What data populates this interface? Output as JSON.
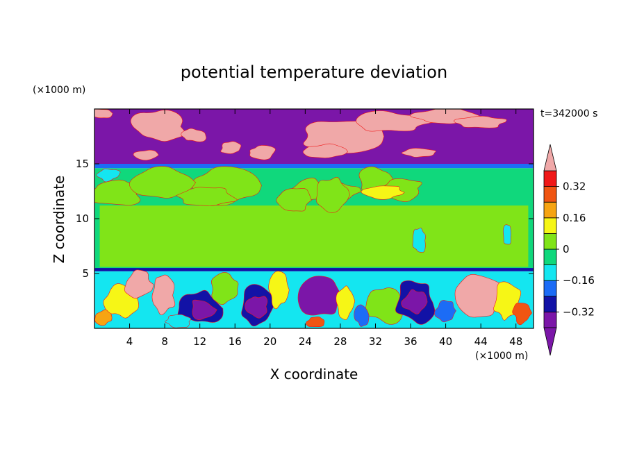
{
  "chart_data": {
    "type": "heatmap",
    "title": "potential temperature deviation",
    "xlabel": "X coordinate",
    "ylabel": "Z coordinate",
    "x_unit": "(×1000 m)",
    "y_unit": "(×1000 m)",
    "time_label": "t=342000 s",
    "xlim": [
      0,
      50
    ],
    "ylim": [
      0,
      20
    ],
    "x_ticks": [
      4,
      8,
      12,
      16,
      20,
      24,
      28,
      32,
      36,
      40,
      44,
      48
    ],
    "y_ticks": [
      5,
      10,
      15
    ],
    "colorbar": {
      "levels": [
        -0.4,
        -0.32,
        -0.24,
        -0.16,
        -0.08,
        0,
        0.08,
        0.16,
        0.24,
        0.32,
        0.4
      ],
      "tick_values": [
        0.32,
        0.16,
        0,
        -0.16,
        -0.32
      ],
      "tick_labels": [
        "0.32",
        "0.16",
        "0",
        "−0.16",
        "−0.32"
      ],
      "colors": [
        "#7b16a8",
        "#1212a6",
        "#1c6cf6",
        "#14e6f0",
        "#10d87c",
        "#80e418",
        "#f6f616",
        "#f6a412",
        "#f05512",
        "#f01818",
        "#f0a8a8"
      ],
      "extend": "both"
    },
    "regions": [
      {
        "name": "upper layer",
        "z": [
          15,
          20
        ],
        "dominant_value": "below -0.4",
        "features": "positive anomaly patches (> 0.4)"
      },
      {
        "name": "tropopause band",
        "z": [
          14.5,
          15
        ],
        "dominant_value": "-0.32 to -0.08"
      },
      {
        "name": "middle layer",
        "z": [
          5.5,
          14.5
        ],
        "dominant_value": "-0.08 to 0.08"
      },
      {
        "name": "boundary layer",
        "z": [
          0,
          5.5
        ],
        "dominant_value": "mixed, -0.4 to 0.4",
        "features": "turbulent eddies"
      }
    ]
  },
  "colors": {
    "plot_frame": "#000000",
    "background": "#ffffff"
  }
}
